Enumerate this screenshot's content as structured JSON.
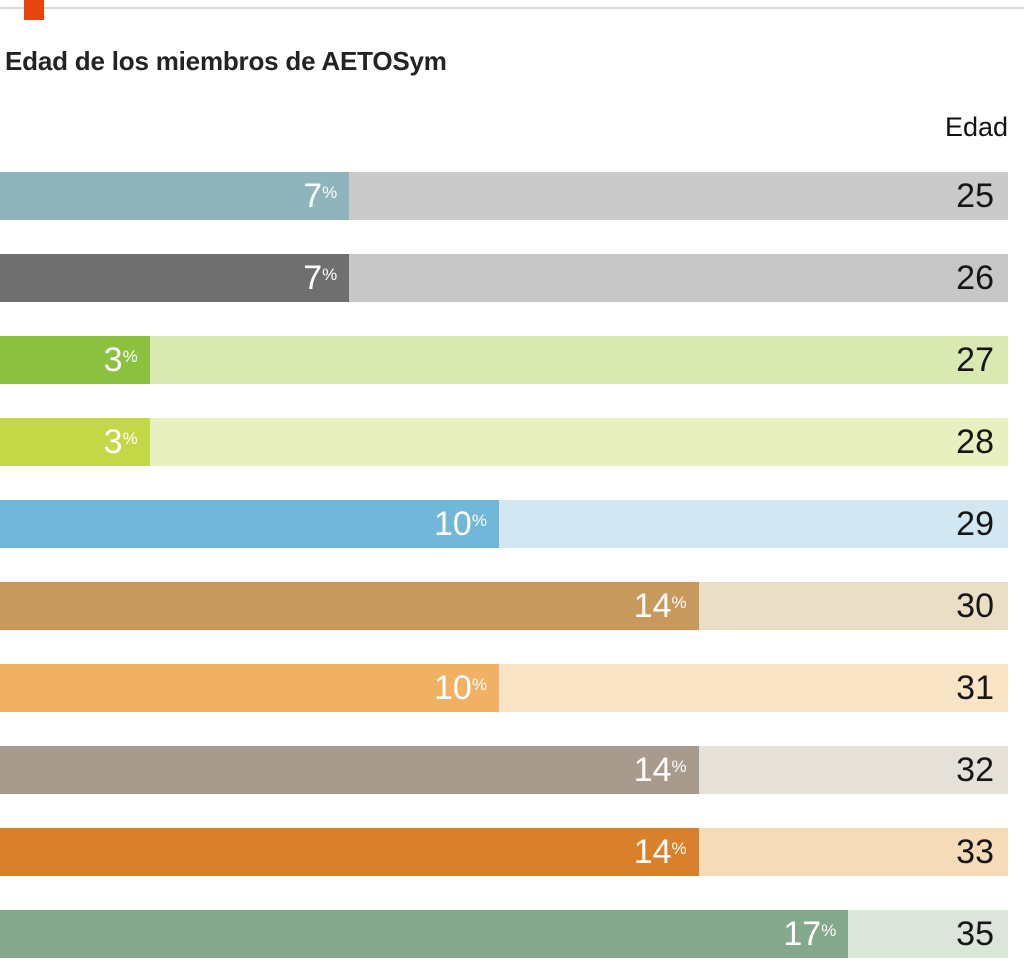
{
  "page": {
    "accent_color": "#e8450c",
    "title": "Edad de los miembros de AETOSym",
    "axis_label": "Edad"
  },
  "chart_data": {
    "type": "bar",
    "orientation": "horizontal",
    "title": "Edad de los miembros de AETOSym",
    "xlabel": "",
    "ylabel": "Edad",
    "value_suffix": "%",
    "xmax": 20.2,
    "grid": false,
    "legend": "none",
    "categories": [
      "25",
      "26",
      "27",
      "28",
      "29",
      "30",
      "31",
      "32",
      "33",
      "35"
    ],
    "values": [
      7,
      7,
      3,
      3,
      10,
      14,
      10,
      14,
      14,
      17
    ],
    "rows": [
      {
        "age": "25",
        "value": 7,
        "bar_color": "#8eb4bc",
        "track_color": "#cacaca"
      },
      {
        "age": "26",
        "value": 7,
        "bar_color": "#6f6f6f",
        "track_color": "#c7c7c7"
      },
      {
        "age": "27",
        "value": 3,
        "bar_color": "#8cc140",
        "track_color": "#d8eab2"
      },
      {
        "age": "28",
        "value": 3,
        "bar_color": "#c4d747",
        "track_color": "#e9f0bf"
      },
      {
        "age": "29",
        "value": 10,
        "bar_color": "#70b7da",
        "track_color": "#d2e7f2"
      },
      {
        "age": "30",
        "value": 14,
        "bar_color": "#c8995c",
        "track_color": "#ebdec6"
      },
      {
        "age": "31",
        "value": 10,
        "bar_color": "#f0b165",
        "track_color": "#f9e4c6"
      },
      {
        "age": "32",
        "value": 14,
        "bar_color": "#a89b8d",
        "track_color": "#e5e0d8"
      },
      {
        "age": "33",
        "value": 14,
        "bar_color": "#d8812a",
        "track_color": "#f5dbb8"
      },
      {
        "age": "35",
        "value": 17,
        "bar_color": "#84a88b",
        "track_color": "#dbe5da"
      }
    ]
  }
}
